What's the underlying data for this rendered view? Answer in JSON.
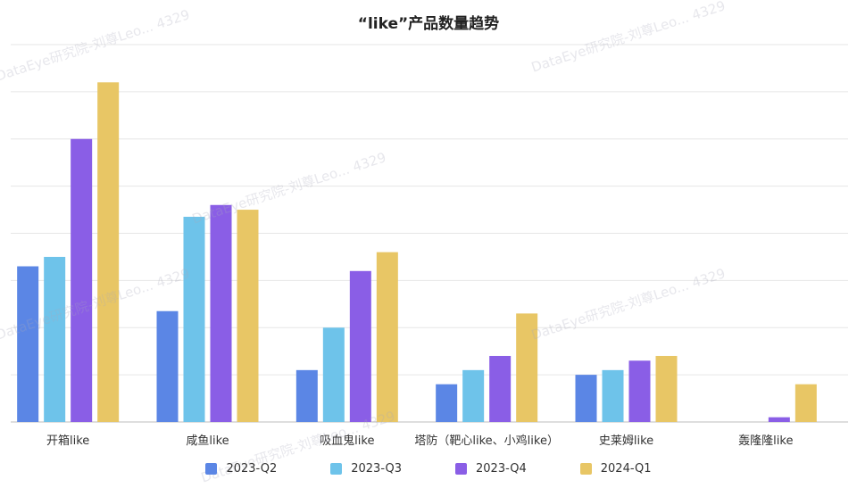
{
  "chart_data": {
    "type": "bar",
    "title": "“like”产品数量趋势",
    "categories": [
      "开箱like",
      "咸鱼like",
      "吸血鬼like",
      "塔防（靶心like、小鸡like）",
      "史莱姆like",
      "轰隆隆like"
    ],
    "series": [
      {
        "name": "2023-Q2",
        "color": "#5b86e5",
        "values": [
          33,
          23.5,
          11,
          8,
          10,
          0
        ]
      },
      {
        "name": "2023-Q3",
        "color": "#6ec3ea",
        "values": [
          35,
          43.5,
          20,
          11,
          11,
          0
        ]
      },
      {
        "name": "2023-Q4",
        "color": "#8a5ee6",
        "values": [
          60,
          46,
          32,
          14,
          13,
          1
        ]
      },
      {
        "name": "2024-Q1",
        "color": "#e8c665",
        "values": [
          72,
          45,
          36,
          23,
          14,
          8
        ]
      }
    ],
    "ylim": [
      0,
      80
    ],
    "grid": true,
    "legend": "bottom"
  },
  "watermark": {
    "text": "DataEye研究院-刘尊Leo... 4329"
  }
}
